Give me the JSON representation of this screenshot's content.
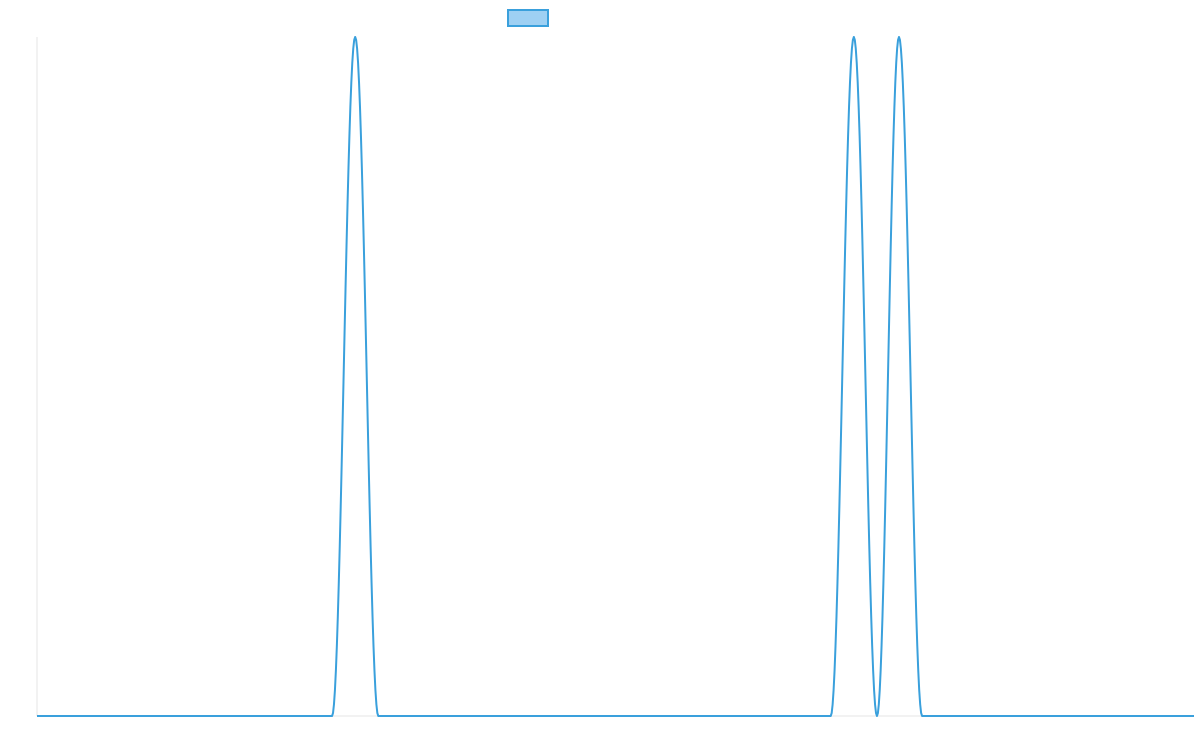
{
  "chart_data": {
    "type": "line",
    "title": "",
    "xlabel": "",
    "ylabel": "",
    "xlim": [
      0,
      1
    ],
    "ylim": [
      0,
      1
    ],
    "grid": false,
    "legend": {
      "placement": "top-center",
      "entries": [
        {
          "label": "",
          "color": "#3aa0dc",
          "fill": "#9ed0f3"
        }
      ]
    },
    "series": [
      {
        "color": "#3aa0dc",
        "shape": "smooth-peaks",
        "x": [
          0.0,
          0.255,
          0.275,
          0.295,
          0.686,
          0.706,
          0.726,
          0.745,
          0.765,
          1.0
        ],
        "y": [
          0,
          0,
          1,
          0,
          0,
          1,
          0,
          1,
          0,
          0
        ]
      }
    ]
  }
}
